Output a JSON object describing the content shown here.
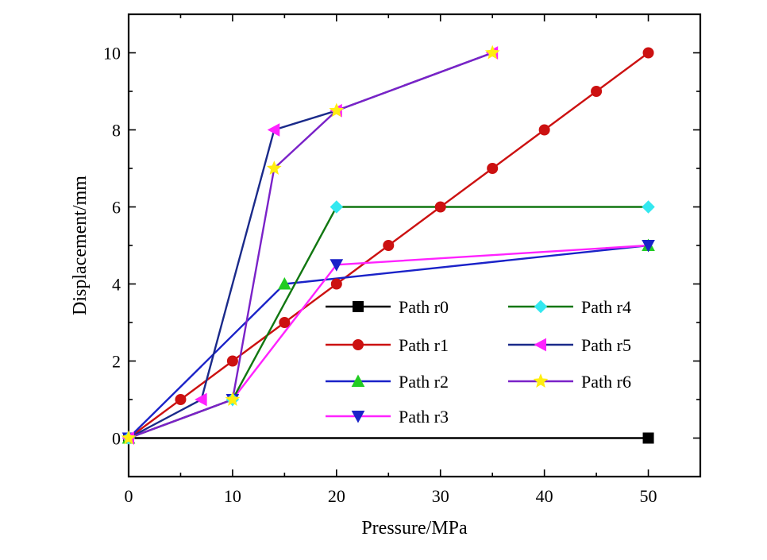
{
  "chart_data": {
    "type": "line",
    "title": "",
    "xlabel": "Pressure/MPa",
    "ylabel": "Displacement/mm",
    "xlim": [
      0,
      55
    ],
    "ylim": [
      -1,
      11
    ],
    "xticks": [
      0,
      10,
      20,
      30,
      40,
      50
    ],
    "yticks": [
      0,
      2,
      4,
      6,
      8,
      10
    ],
    "grid": false,
    "legend_placement": "lower-right inside",
    "series": [
      {
        "name": "Path r0",
        "color": "#000000",
        "marker": "square",
        "x": [
          0,
          50
        ],
        "y": [
          0,
          0
        ]
      },
      {
        "name": "Path r1",
        "color": "#cc1111",
        "marker": "circle",
        "x": [
          0,
          5,
          10,
          15,
          20,
          25,
          30,
          35,
          40,
          45,
          50
        ],
        "y": [
          0,
          1,
          2,
          3,
          4,
          5,
          6,
          7,
          8,
          9,
          10
        ]
      },
      {
        "name": "Path r2",
        "color": "#1a22c8",
        "marker": "triangle-up",
        "marker_color": "#22cc22",
        "x": [
          0,
          15,
          50
        ],
        "y": [
          0,
          4,
          5
        ]
      },
      {
        "name": "Path r3",
        "color": "#ff22ff",
        "marker": "triangle-down",
        "marker_color": "#1a22c8",
        "x": [
          0,
          10,
          20,
          50
        ],
        "y": [
          0,
          1,
          4.5,
          5
        ]
      },
      {
        "name": "Path r4",
        "color": "#117711",
        "marker": "diamond",
        "marker_color": "#33e8f0",
        "x": [
          0,
          10,
          20,
          50
        ],
        "y": [
          0,
          1,
          6,
          6
        ]
      },
      {
        "name": "Path r5",
        "color": "#1a2a8a",
        "marker": "triangle-left",
        "marker_color": "#ff22ff",
        "x": [
          0,
          7,
          14,
          20,
          35
        ],
        "y": [
          0,
          1,
          8,
          8.5,
          10
        ]
      },
      {
        "name": "Path r6",
        "color": "#7a22c8",
        "marker": "star",
        "marker_color": "#ffee11",
        "x": [
          0,
          10,
          14,
          20,
          35
        ],
        "y": [
          0,
          1,
          7,
          8.5,
          10
        ]
      }
    ]
  }
}
